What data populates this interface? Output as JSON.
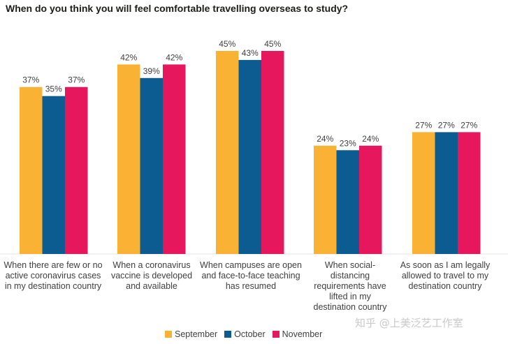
{
  "chart_data": {
    "type": "bar",
    "title": "When do you think you will feel comfortable travelling overseas to study?",
    "categories": [
      "When there are few or no active coronavirus cases in my destination country",
      "When a coronavirus vaccine is developed and available",
      "When campuses are open and face-to-face teaching has resumed",
      "When social-distancing requirements have lifted in my destination country",
      "As soon as I am legally allowed to travel to my destination country"
    ],
    "series": [
      {
        "name": "September",
        "values": [
          37,
          42,
          45,
          24,
          27
        ],
        "color": "#F9B233"
      },
      {
        "name": "October",
        "values": [
          35,
          39,
          43,
          23,
          27
        ],
        "color": "#0D5C91"
      },
      {
        "name": "November",
        "values": [
          37,
          42,
          45,
          24,
          27
        ],
        "color": "#E6175C"
      }
    ],
    "value_suffix": "%",
    "ylim": [
      0,
      45
    ],
    "grid": false,
    "legend_position": "bottom-center"
  },
  "watermark": "知乎 @上美泛艺工作室"
}
